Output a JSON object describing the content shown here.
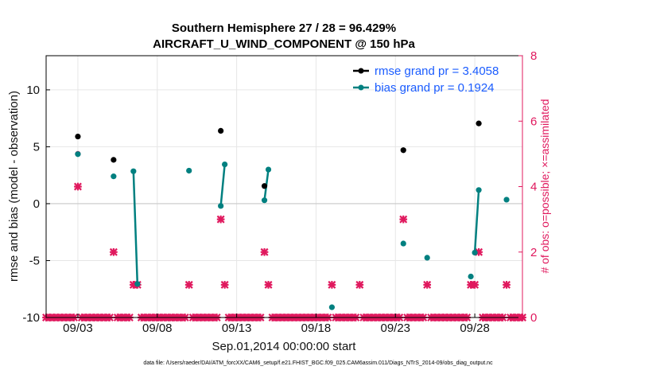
{
  "chart_data": {
    "type": "scatter",
    "title": [
      "Southern Hemisphere 27 / 28 = 96.429%",
      "AIRCRAFT_U_WIND_COMPONENT @ 150 hPa"
    ],
    "xlabel": "Sep.01,2014 00:00:00 start",
    "ylabel": "rmse and bias (model - observation)",
    "ylabel_right": "# of obs: o=possible; ×=assimilated",
    "footer": "data file: /Users/raeder/DAI/ATM_forcXX/CAM6_setup/f.e21.FHIST_BGC.f09_025.CAM6assim.011/Diags_NTrS_2014-09/obs_diag_output.nc",
    "xlim": [
      1.0,
      31.0
    ],
    "ylim": [
      -10,
      13
    ],
    "ylim_right": [
      0,
      8
    ],
    "xticks": [
      3,
      8,
      13,
      18,
      23,
      28
    ],
    "xtick_labels": [
      "09/03",
      "09/08",
      "09/13",
      "09/18",
      "09/23",
      "09/28"
    ],
    "yticks": [
      -10,
      -5,
      0,
      5,
      10
    ],
    "ytick_labels": [
      "-10",
      "-5",
      "0",
      "5",
      "10"
    ],
    "yticks_right": [
      0,
      2,
      4,
      6,
      8
    ],
    "ytick_labels_right": [
      "0",
      "2",
      "4",
      "6",
      "8"
    ],
    "colors": {
      "rmse": "#000000",
      "bias": "#008080",
      "obs": "#e0195e",
      "legend_text": "#1a5cff",
      "zero_line": "#c8c8c8"
    },
    "series": [
      {
        "name": "rmse grand pr = 3.4058",
        "color": "#000000",
        "points": [
          [
            3.0,
            5.9
          ],
          [
            5.25,
            3.85
          ],
          [
            12.0,
            6.4
          ],
          [
            14.75,
            1.55
          ],
          [
            23.5,
            4.7
          ],
          [
            28.25,
            7.05
          ]
        ],
        "segments": []
      },
      {
        "name": "bias grand pr = 0.1924",
        "color": "#008080",
        "points": [
          [
            3.0,
            4.35
          ],
          [
            5.25,
            2.4
          ],
          [
            6.5,
            2.85
          ],
          [
            6.75,
            -7.05
          ],
          [
            10.0,
            2.9
          ],
          [
            12.0,
            -0.2
          ],
          [
            12.25,
            3.45
          ],
          [
            14.75,
            0.3
          ],
          [
            15.0,
            3.0
          ],
          [
            19.0,
            -9.1
          ],
          [
            23.5,
            -3.5
          ],
          [
            25.0,
            -4.75
          ],
          [
            27.75,
            -6.4
          ],
          [
            28.0,
            -4.3
          ],
          [
            28.25,
            1.2
          ],
          [
            30.0,
            0.35
          ]
        ],
        "segments": [
          [
            [
              6.5,
              2.85
            ],
            [
              6.75,
              -7.05
            ]
          ],
          [
            [
              12.0,
              -0.2
            ],
            [
              12.25,
              3.45
            ]
          ],
          [
            [
              14.75,
              0.3
            ],
            [
              15.0,
              3.0
            ]
          ],
          [
            [
              28.0,
              -4.3
            ],
            [
              28.25,
              1.2
            ]
          ]
        ]
      }
    ],
    "obs_possible": [
      [
        3.0,
        5
      ]
    ],
    "obs_assimilated": [
      [
        3.0,
        4
      ],
      [
        5.25,
        2
      ],
      [
        6.5,
        1
      ],
      [
        6.75,
        1
      ],
      [
        10.0,
        1
      ],
      [
        12.0,
        3
      ],
      [
        12.25,
        1
      ],
      [
        14.75,
        2
      ],
      [
        15.0,
        1
      ],
      [
        19.0,
        1
      ],
      [
        20.75,
        1
      ],
      [
        23.5,
        3
      ],
      [
        25.0,
        1
      ],
      [
        27.75,
        1
      ],
      [
        28.0,
        1
      ],
      [
        28.25,
        2
      ],
      [
        30.0,
        1
      ]
    ],
    "obs_zero_range": [
      1.0,
      31.0
    ],
    "obs_zero_step": 0.25,
    "legend_position": "top-right"
  }
}
